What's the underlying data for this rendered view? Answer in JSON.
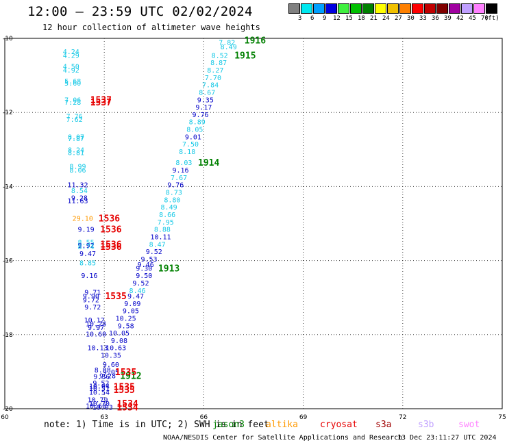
{
  "header": {
    "title": "12:00 – 23:59 UTC 02/02/2024",
    "subtitle": "12 hour collection of altimeter wave heights"
  },
  "legend": {
    "unit": "(ft)",
    "bins": [
      {
        "label": "3",
        "color": "#808080"
      },
      {
        "label": "6",
        "color": "#00e8f0"
      },
      {
        "label": "9",
        "color": "#00a0ff"
      },
      {
        "label": "12",
        "color": "#0000e0"
      },
      {
        "label": "15",
        "color": "#40f040"
      },
      {
        "label": "18",
        "color": "#00c000"
      },
      {
        "label": "21",
        "color": "#008000"
      },
      {
        "label": "24",
        "color": "#ffff00"
      },
      {
        "label": "27",
        "color": "#f0c000"
      },
      {
        "label": "30",
        "color": "#ff8000"
      },
      {
        "label": "33",
        "color": "#ff0000"
      },
      {
        "label": "36",
        "color": "#c00000"
      },
      {
        "label": "39",
        "color": "#800000"
      },
      {
        "label": "42",
        "color": "#a000a0"
      },
      {
        "label": "45",
        "color": "#c0a0ff"
      },
      {
        "label": "70",
        "color": "#ff80ff"
      },
      {
        "label": "",
        "color": "#000000"
      }
    ]
  },
  "map": {
    "lon_ticks": [
      "60",
      "63",
      "66",
      "69",
      "72",
      "75"
    ],
    "lat_ticks": [
      "-10",
      "-12",
      "-14",
      "-16",
      "-18",
      "-20"
    ],
    "lon_range": [
      60,
      75
    ],
    "lat_range": [
      -20,
      -10
    ]
  },
  "colors": {
    "cyan": "#14c8e6",
    "lightblue": "#1e96ff",
    "blue": "#0000c8",
    "orange": "#ff9900",
    "red": "#e60000",
    "green": "#008000"
  },
  "observations": [
    {
      "t": "7.82",
      "lon": 66.7,
      "lat": -10.1,
      "c": "cyan"
    },
    {
      "t": "8.49",
      "lon": 66.75,
      "lat": -10.22,
      "c": "cyan"
    },
    {
      "t": "8.52",
      "lon": 66.48,
      "lat": -10.45,
      "c": "cyan"
    },
    {
      "t": "8.87",
      "lon": 66.45,
      "lat": -10.65,
      "c": "cyan"
    },
    {
      "t": "8.27",
      "lon": 66.35,
      "lat": -10.85,
      "c": "cyan"
    },
    {
      "t": "7.70",
      "lon": 66.28,
      "lat": -11.05,
      "c": "cyan"
    },
    {
      "t": "7.84",
      "lon": 66.2,
      "lat": -11.25,
      "c": "cyan"
    },
    {
      "t": "8.67",
      "lon": 66.1,
      "lat": -11.45,
      "c": "cyan"
    },
    {
      "t": "9.35",
      "lon": 66.05,
      "lat": -11.65,
      "c": "blue"
    },
    {
      "t": "9.17",
      "lon": 66.0,
      "lat": -11.85,
      "c": "blue"
    },
    {
      "t": "9.76",
      "lon": 65.9,
      "lat": -12.05,
      "c": "blue"
    },
    {
      "t": "8.89",
      "lon": 65.8,
      "lat": -12.25,
      "c": "cyan"
    },
    {
      "t": "8.05",
      "lon": 65.73,
      "lat": -12.45,
      "c": "cyan"
    },
    {
      "t": "9.01",
      "lon": 65.68,
      "lat": -12.65,
      "c": "blue"
    },
    {
      "t": "7.50",
      "lon": 65.6,
      "lat": -12.85,
      "c": "cyan"
    },
    {
      "t": "8.18",
      "lon": 65.5,
      "lat": -13.05,
      "c": "cyan"
    },
    {
      "t": "8.03",
      "lon": 65.4,
      "lat": -13.35,
      "c": "cyan"
    },
    {
      "t": "9.16",
      "lon": 65.3,
      "lat": -13.55,
      "c": "blue"
    },
    {
      "t": "7.67",
      "lon": 65.25,
      "lat": -13.75,
      "c": "cyan"
    },
    {
      "t": "9.76",
      "lon": 65.15,
      "lat": -13.95,
      "c": "blue"
    },
    {
      "t": "8.73",
      "lon": 65.1,
      "lat": -14.15,
      "c": "cyan"
    },
    {
      "t": "8.80",
      "lon": 65.05,
      "lat": -14.35,
      "c": "cyan"
    },
    {
      "t": "8.49",
      "lon": 64.95,
      "lat": -14.55,
      "c": "cyan"
    },
    {
      "t": "8.66",
      "lon": 64.9,
      "lat": -14.75,
      "c": "cyan"
    },
    {
      "t": "7.95",
      "lon": 64.85,
      "lat": -14.95,
      "c": "cyan"
    },
    {
      "t": "8.88",
      "lon": 64.75,
      "lat": -15.15,
      "c": "cyan"
    },
    {
      "t": "10.11",
      "lon": 64.7,
      "lat": -15.35,
      "c": "blue"
    },
    {
      "t": "8.47",
      "lon": 64.6,
      "lat": -15.55,
      "c": "cyan"
    },
    {
      "t": "9.52",
      "lon": 64.5,
      "lat": -15.75,
      "c": "blue"
    },
    {
      "t": "9.53",
      "lon": 64.35,
      "lat": -15.95,
      "c": "blue"
    },
    {
      "t": "9.46",
      "lon": 64.25,
      "lat": -16.1,
      "c": "blue"
    },
    {
      "t": "9.30",
      "lon": 64.2,
      "lat": -16.2,
      "c": "blue"
    },
    {
      "t": "9.50",
      "lon": 64.2,
      "lat": -16.4,
      "c": "blue"
    },
    {
      "t": "9.52",
      "lon": 64.1,
      "lat": -16.6,
      "c": "blue"
    },
    {
      "t": "8.46",
      "lon": 64.0,
      "lat": -16.8,
      "c": "cyan"
    },
    {
      "t": "9.47",
      "lon": 63.95,
      "lat": -16.95,
      "c": "blue"
    },
    {
      "t": "9.09",
      "lon": 63.85,
      "lat": -17.15,
      "c": "blue"
    },
    {
      "t": "9.05",
      "lon": 63.8,
      "lat": -17.35,
      "c": "blue"
    },
    {
      "t": "10.25",
      "lon": 63.65,
      "lat": -17.55,
      "c": "blue"
    },
    {
      "t": "9.58",
      "lon": 63.65,
      "lat": -17.75,
      "c": "blue"
    },
    {
      "t": "10.05",
      "lon": 63.45,
      "lat": -17.95,
      "c": "blue"
    },
    {
      "t": "9.08",
      "lon": 63.45,
      "lat": -18.15,
      "c": "blue"
    },
    {
      "t": "10.63",
      "lon": 63.35,
      "lat": -18.35,
      "c": "blue"
    },
    {
      "t": "10.35",
      "lon": 63.2,
      "lat": -18.55,
      "c": "blue"
    },
    {
      "t": "9.60",
      "lon": 63.2,
      "lat": -18.8,
      "c": "blue"
    },
    {
      "t": "8.88",
      "lon": 62.95,
      "lat": -18.95,
      "c": "blue"
    },
    {
      "t": "9.05",
      "lon": 63.2,
      "lat": -19.0,
      "c": "blue"
    },
    {
      "t": "9.28",
      "lon": 63.1,
      "lat": -19.1,
      "c": "blue"
    },
    {
      "t": "9.36",
      "lon": 62.92,
      "lat": -19.12,
      "c": "blue"
    },
    {
      "t": "9.52",
      "lon": 62.9,
      "lat": -19.3,
      "c": "blue"
    },
    {
      "t": "10.04",
      "lon": 62.85,
      "lat": -19.38,
      "c": "blue"
    },
    {
      "t": "10.51",
      "lon": 62.85,
      "lat": -19.45,
      "c": "blue"
    },
    {
      "t": "10.54",
      "lon": 62.85,
      "lat": -19.55,
      "c": "blue"
    },
    {
      "t": "10.79",
      "lon": 62.8,
      "lat": -19.75,
      "c": "blue"
    },
    {
      "t": "10.70",
      "lon": 62.85,
      "lat": -19.85,
      "c": "blue"
    },
    {
      "t": "10.60",
      "lon": 62.75,
      "lat": -19.92,
      "c": "blue"
    },
    {
      "t": "10.03",
      "lon": 62.95,
      "lat": -19.95,
      "c": "blue"
    },
    {
      "t": "4.24",
      "lon": 62.0,
      "lat": -10.35,
      "c": "cyan"
    },
    {
      "t": "4.29",
      "lon": 62.0,
      "lat": -10.45,
      "c": "cyan"
    },
    {
      "t": "4.50",
      "lon": 62.0,
      "lat": -10.75,
      "c": "cyan"
    },
    {
      "t": "4.92",
      "lon": 62.0,
      "lat": -10.85,
      "c": "cyan"
    },
    {
      "t": "5.68",
      "lon": 62.05,
      "lat": -11.15,
      "c": "cyan"
    },
    {
      "t": "5.60",
      "lon": 62.05,
      "lat": -11.2,
      "c": "cyan"
    },
    {
      "t": "7.06",
      "lon": 62.05,
      "lat": -11.65,
      "c": "cyan"
    },
    {
      "t": "7.28",
      "lon": 62.05,
      "lat": -11.72,
      "c": "cyan"
    },
    {
      "t": "7.76",
      "lon": 62.1,
      "lat": -12.1,
      "c": "cyan"
    },
    {
      "t": "7.62",
      "lon": 62.1,
      "lat": -12.18,
      "c": "cyan"
    },
    {
      "t": "8.07",
      "lon": 62.15,
      "lat": -12.65,
      "c": "cyan"
    },
    {
      "t": "7.87",
      "lon": 62.15,
      "lat": -12.7,
      "c": "cyan"
    },
    {
      "t": "8.24",
      "lon": 62.15,
      "lat": -13.0,
      "c": "cyan"
    },
    {
      "t": "8.81",
      "lon": 62.15,
      "lat": -13.08,
      "c": "cyan"
    },
    {
      "t": "8.99",
      "lon": 62.2,
      "lat": -13.45,
      "c": "cyan"
    },
    {
      "t": "8.06",
      "lon": 62.2,
      "lat": -13.55,
      "c": "cyan"
    },
    {
      "t": "11.32",
      "lon": 62.2,
      "lat": -13.95,
      "c": "blue"
    },
    {
      "t": "8.54",
      "lon": 62.25,
      "lat": -14.1,
      "c": "cyan"
    },
    {
      "t": "9.28",
      "lon": 62.25,
      "lat": -14.3,
      "c": "blue"
    },
    {
      "t": "11.63",
      "lon": 62.2,
      "lat": -14.38,
      "c": "blue"
    },
    {
      "t": "29.10",
      "lon": 62.35,
      "lat": -14.85,
      "c": "orange"
    },
    {
      "t": "9.19",
      "lon": 62.45,
      "lat": -15.15,
      "c": "blue"
    },
    {
      "t": "8.55",
      "lon": 62.45,
      "lat": -15.5,
      "c": "cyan"
    },
    {
      "t": "9.92",
      "lon": 62.45,
      "lat": -15.58,
      "c": "blue"
    },
    {
      "t": "8.74",
      "lon": 62.45,
      "lat": -15.62,
      "c": "cyan"
    },
    {
      "t": "9.47",
      "lon": 62.5,
      "lat": -15.8,
      "c": "blue"
    },
    {
      "t": "8.85",
      "lon": 62.5,
      "lat": -16.05,
      "c": "cyan"
    },
    {
      "t": "9.16",
      "lon": 62.55,
      "lat": -16.4,
      "c": "blue"
    },
    {
      "t": "9.71",
      "lon": 62.65,
      "lat": -16.85,
      "c": "blue"
    },
    {
      "t": "9.90",
      "lon": 62.6,
      "lat": -16.95,
      "c": "blue"
    },
    {
      "t": "9.72",
      "lon": 62.6,
      "lat": -17.05,
      "c": "blue"
    },
    {
      "t": "9.72",
      "lon": 62.65,
      "lat": -17.25,
      "c": "blue"
    },
    {
      "t": "10.12",
      "lon": 62.7,
      "lat": -17.6,
      "c": "blue"
    },
    {
      "t": "10.24",
      "lon": 62.75,
      "lat": -17.7,
      "c": "blue"
    },
    {
      "t": "9.97",
      "lon": 62.75,
      "lat": -17.8,
      "c": "blue"
    },
    {
      "t": "10.60",
      "lon": 62.75,
      "lat": -17.98,
      "c": "blue"
    },
    {
      "t": "10.13",
      "lon": 62.8,
      "lat": -18.35,
      "c": "blue"
    }
  ],
  "tracks": [
    {
      "t": "1916",
      "lon": 67.55,
      "lat": -10.05,
      "c": "green"
    },
    {
      "t": "1915",
      "lon": 67.25,
      "lat": -10.45,
      "c": "green"
    },
    {
      "t": "1914",
      "lon": 66.15,
      "lat": -13.35,
      "c": "green"
    },
    {
      "t": "1913",
      "lon": 64.95,
      "lat": -16.2,
      "c": "green"
    },
    {
      "t": "1912",
      "lon": 63.8,
      "lat": -19.1,
      "c": "green"
    },
    {
      "t": "1537",
      "lon": 62.9,
      "lat": -11.65,
      "c": "red"
    },
    {
      "t": "1537",
      "lon": 62.9,
      "lat": -11.72,
      "c": "red"
    },
    {
      "t": "1536",
      "lon": 63.15,
      "lat": -14.85,
      "c": "red"
    },
    {
      "t": "1536",
      "lon": 63.2,
      "lat": -15.15,
      "c": "red"
    },
    {
      "t": "1536",
      "lon": 63.2,
      "lat": -15.55,
      "c": "red"
    },
    {
      "t": "1536",
      "lon": 63.2,
      "lat": -15.62,
      "c": "red"
    },
    {
      "t": "1535",
      "lon": 63.35,
      "lat": -16.95,
      "c": "red"
    },
    {
      "t": "1535",
      "lon": 63.65,
      "lat": -19.0,
      "c": "red"
    },
    {
      "t": "1535",
      "lon": 63.6,
      "lat": -19.4,
      "c": "red"
    },
    {
      "t": "1535",
      "lon": 63.6,
      "lat": -19.48,
      "c": "red"
    },
    {
      "t": "1534",
      "lon": 63.7,
      "lat": -19.85,
      "c": "red"
    },
    {
      "t": "1534",
      "lon": 63.7,
      "lat": -19.95,
      "c": "red"
    }
  ],
  "footer": {
    "note": "note: 1) Time is in UTC; 2) SWH is in feet",
    "missions": [
      {
        "label": "jason3",
        "color": "#008000"
      },
      {
        "label": "altika",
        "color": "#ff9900"
      },
      {
        "label": "cryosat",
        "color": "#e60000"
      },
      {
        "label": "s3a",
        "color": "#a00000"
      },
      {
        "label": "s3b",
        "color": "#c0a0ff"
      },
      {
        "label": "swot",
        "color": "#ff80ff"
      }
    ],
    "credit": "NOAA/NESDIS Center for Satellite Applications and Research",
    "timestamp": "13 Dec 23:11:27 UTC 2024"
  }
}
